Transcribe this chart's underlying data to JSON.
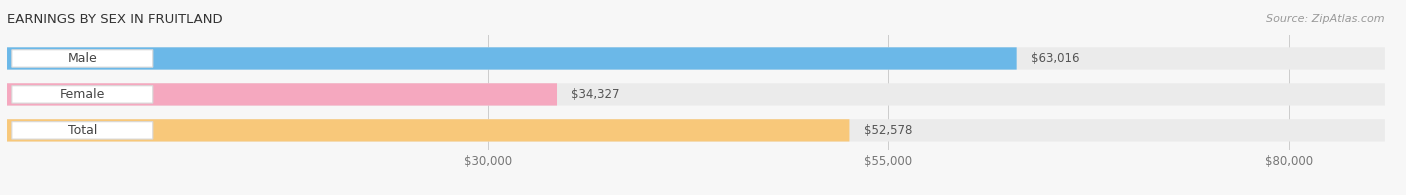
{
  "title": "EARNINGS BY SEX IN FRUITLAND",
  "source": "Source: ZipAtlas.com",
  "categories": [
    "Male",
    "Female",
    "Total"
  ],
  "values": [
    63016,
    34327,
    52578
  ],
  "bar_colors": [
    "#6bb8e8",
    "#f5a8bf",
    "#f8c87a"
  ],
  "bar_bg_color": "#ebebeb",
  "label_values": [
    "$63,016",
    "$34,327",
    "$52,578"
  ],
  "xlim_data": [
    0,
    86000
  ],
  "xlim_display": [
    0,
    86000
  ],
  "xticks": [
    30000,
    55000,
    80000
  ],
  "xtick_labels": [
    "$30,000",
    "$55,000",
    "$80,000"
  ],
  "title_fontsize": 9.5,
  "source_fontsize": 8,
  "bar_label_fontsize": 9,
  "value_fontsize": 8.5,
  "axis_fontsize": 8.5,
  "background_color": "#f7f7f7",
  "bar_height": 0.62,
  "pill_bg": "#ffffff",
  "bar_gap": 0.18,
  "rounding_pts": 14
}
